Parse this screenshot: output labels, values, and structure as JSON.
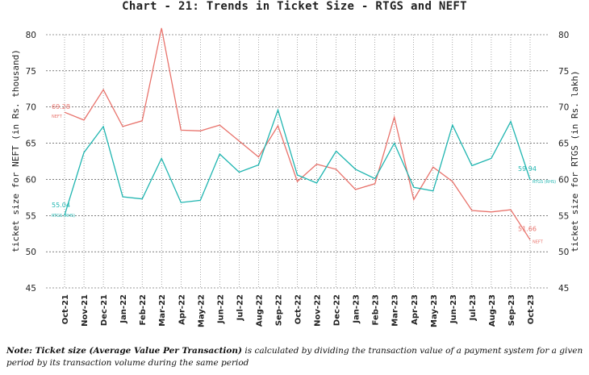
{
  "chart_data": {
    "type": "line",
    "title": "Chart - 21: Trends in Ticket Size - RTGS and NEFT",
    "categories": [
      "Oct-21",
      "Nov-21",
      "Dec-21",
      "Jan-22",
      "Feb-22",
      "Mar-22",
      "Apr-22",
      "May-22",
      "Jun-22",
      "Jul-22",
      "Aug-22",
      "Sep-22",
      "Oct-22",
      "Nov-22",
      "Dec-22",
      "Jan-23",
      "Feb-23",
      "Mar-23",
      "Apr-23",
      "May-23",
      "Jun-23",
      "Jul-23",
      "Aug-23",
      "Sep-23",
      "Oct-23"
    ],
    "ylabel_left": "ticket size for NEFT (in Rs. thousand)",
    "ylabel_right": "ticket size for RTGS (in Rs. lakh)",
    "ylim": [
      45,
      80
    ],
    "yticks": [
      45,
      50,
      55,
      60,
      65,
      70,
      75,
      80
    ],
    "grid": true,
    "series": [
      {
        "name": "NEFT",
        "axis": "left",
        "color": "#e8736c",
        "values": [
          69.28,
          68.2,
          72.4,
          67.3,
          68.1,
          80.9,
          66.8,
          66.7,
          67.5,
          65.3,
          63.1,
          67.4,
          59.7,
          62.1,
          61.4,
          58.6,
          59.4,
          68.6,
          57.2,
          61.7,
          59.7,
          55.7,
          55.5,
          55.8,
          51.66
        ],
        "start_label": "69.28",
        "start_name": "NEFT",
        "end_label": "51.66",
        "end_name": "NEFT"
      },
      {
        "name": "RTGS",
        "axis": "right",
        "color": "#1fb5b0",
        "values": [
          55.04,
          63.7,
          67.3,
          57.6,
          57.3,
          62.9,
          56.8,
          57.1,
          63.5,
          61.0,
          62.0,
          69.6,
          60.6,
          59.5,
          63.9,
          61.4,
          60.1,
          65.0,
          58.9,
          58.4,
          67.5,
          61.9,
          62.9,
          68.0,
          59.94
        ],
        "start_label": "55.04",
        "start_name": "RTGS (RHS)",
        "end_label": "59.94",
        "end_name": "RTGS (RHS)"
      }
    ]
  },
  "note": {
    "prefix": "Note: ",
    "bold_term": "Ticket size (Average Value Per Transaction)",
    "text": " is calculated by dividing the transaction value of a payment system for a given period by its transaction volume during the same period"
  }
}
